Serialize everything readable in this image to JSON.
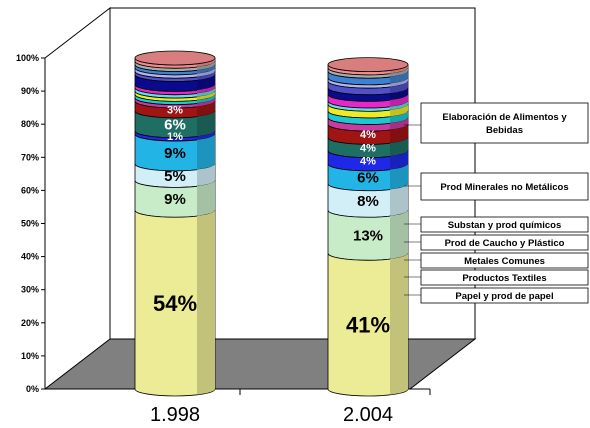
{
  "chart_data": {
    "type": "bar",
    "stacked": true,
    "style": "3d-cylinder",
    "categories": [
      "1.998",
      "2.004"
    ],
    "y_ticks": [
      "0%",
      "10%",
      "20%",
      "30%",
      "40%",
      "50%",
      "60%",
      "70%",
      "80%",
      "90%",
      "100%"
    ],
    "ylim": [
      0,
      100
    ],
    "series": [
      {
        "name": "Elaboración de Alimentos y Bebidas",
        "color": "#ECEC96",
        "values": [
          54,
          41
        ],
        "labels": [
          "54%",
          "41%"
        ]
      },
      {
        "name": "Prod Minerales no Metálicos",
        "color": "#C8EBC8",
        "values": [
          9,
          13
        ],
        "labels": [
          "9%",
          "13%"
        ]
      },
      {
        "name": "Substan y prod químicos",
        "color": "#D2EEF6",
        "values": [
          5,
          8
        ],
        "labels": [
          "5%",
          "8%"
        ]
      },
      {
        "name": "Prod de Caucho y Plástico",
        "color": "#23B4E6",
        "values": [
          9,
          6
        ],
        "labels": [
          "9%",
          "6%"
        ]
      },
      {
        "name": "Metales Comunes",
        "color": "#1E28E6",
        "values": [
          1,
          4
        ],
        "labels": [
          "1%",
          "4%"
        ]
      },
      {
        "name": "Productos Textiles",
        "color": "#1E6E64",
        "values": [
          6,
          4
        ],
        "labels": [
          "6%",
          "4%"
        ]
      },
      {
        "name": "Papel y prod de papel",
        "color": "#A01414",
        "values": [
          3,
          4
        ],
        "labels": [
          "3%",
          "4%"
        ]
      },
      {
        "name": "",
        "color": "#C83CA0",
        "values": [
          1,
          2
        ],
        "labels": [
          "",
          ""
        ]
      },
      {
        "name": "",
        "color": "#1EC8D2",
        "values": [
          1,
          2
        ],
        "labels": [
          "",
          ""
        ]
      },
      {
        "name": "",
        "color": "#EBEB28",
        "values": [
          1,
          2
        ],
        "labels": [
          "",
          ""
        ]
      },
      {
        "name": "",
        "color": "#64DCE6",
        "values": [
          1,
          1
        ],
        "labels": [
          "",
          ""
        ]
      },
      {
        "name": "",
        "color": "#E628C8",
        "values": [
          1,
          2
        ],
        "labels": [
          "",
          ""
        ]
      },
      {
        "name": "",
        "color": "#0A0A8C",
        "values": [
          3,
          2
        ],
        "labels": [
          "",
          ""
        ]
      },
      {
        "name": "",
        "color": "#5050C8",
        "values": [
          1,
          2
        ],
        "labels": [
          "",
          ""
        ]
      },
      {
        "name": "",
        "color": "#B4B4F0",
        "values": [
          1,
          1
        ],
        "labels": [
          "",
          ""
        ]
      },
      {
        "name": "",
        "color": "#3C82D2",
        "values": [
          1,
          2
        ],
        "labels": [
          "",
          ""
        ]
      },
      {
        "name": "",
        "color": "#AAAAAA",
        "values": [
          1,
          1
        ],
        "labels": [
          "",
          ""
        ]
      },
      {
        "name": "",
        "color": "#F08C8C",
        "values": [
          1,
          1
        ],
        "labels": [
          "",
          ""
        ]
      }
    ],
    "legend": {
      "placement": "right",
      "entries": [
        "Elaboración de Alimentos y\nBebidas",
        "Prod Minerales no Metálicos",
        "Substan y prod químicos",
        "Prod de Caucho y Plástico",
        "Metales Comunes",
        "Productos Textiles",
        "Papel y prod de papel"
      ]
    }
  }
}
